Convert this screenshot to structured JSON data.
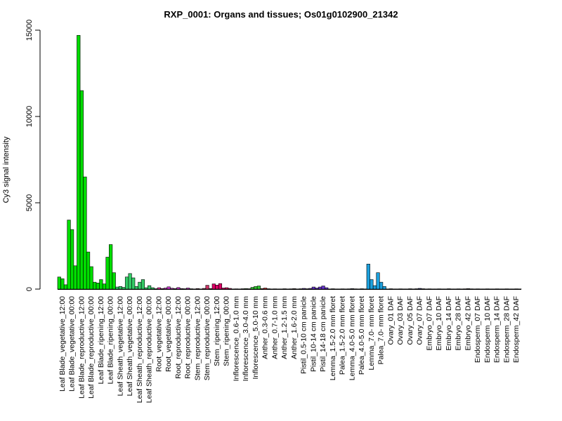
{
  "chart_data": {
    "type": "bar",
    "title": "RXP_0001: Organs and tissues; Os01g0102900_21342",
    "ylabel": "Cy3 signal intensity",
    "xlabel": "",
    "ylim": [
      0,
      15000
    ],
    "yticks": [
      0,
      5000,
      10000,
      15000
    ],
    "grid": false,
    "groups": [
      {
        "label": "Leaf Blade_vegetative_12:00",
        "color": "#00dd00",
        "values": [
          700,
          600,
          250
        ]
      },
      {
        "label": "Leaf Blade_vegetative_00:00",
        "color": "#00dd00",
        "values": [
          4000,
          3450,
          1350
        ]
      },
      {
        "label": "Leaf Blade_reproductive_12:00",
        "color": "#00dd00",
        "values": [
          14700,
          11500,
          6500
        ]
      },
      {
        "label": "Leaf Blade_reproductive_00:00",
        "color": "#00dd00",
        "values": [
          2150,
          1300,
          400
        ]
      },
      {
        "label": "Leaf Blade_ripening_12:00",
        "color": "#00dd00",
        "values": [
          350,
          550,
          300
        ]
      },
      {
        "label": "Leaf Blade_ripening_00:00",
        "color": "#00dd00",
        "values": [
          1850,
          2580,
          950
        ]
      },
      {
        "label": "Leaf Sheath_vegetative_12:00",
        "color": "#33cc66",
        "values": [
          120,
          150,
          100
        ]
      },
      {
        "label": "Leaf Sheath_vegetative_00:00",
        "color": "#33cc66",
        "values": [
          700,
          900,
          650
        ]
      },
      {
        "label": "Leaf Sheath_reproductive_12:00",
        "color": "#33cc66",
        "values": [
          150,
          400,
          550
        ]
      },
      {
        "label": "Leaf Sheath_reproductive_00:00",
        "color": "#33cc66",
        "values": [
          80,
          200,
          80
        ]
      },
      {
        "label": "Root_vegetative_12:00",
        "color": "#ff33aa",
        "values": [
          20,
          80,
          30
        ]
      },
      {
        "label": "Root_vegetative_00:00",
        "color": "#cc33cc",
        "values": [
          60,
          130,
          50
        ]
      },
      {
        "label": "Root_reproductive_12:00",
        "color": "#cc33cc",
        "values": [
          30,
          90,
          30
        ]
      },
      {
        "label": "Root_reproductive_00:00",
        "color": "#cc33cc",
        "values": [
          20,
          60,
          20
        ]
      },
      {
        "label": "Stem_reproductive_12:00",
        "color": "#cc3366",
        "values": [
          10,
          30,
          10
        ]
      },
      {
        "label": "Stem_reproductive_00:00",
        "color": "#cc3366",
        "values": [
          40,
          220,
          30
        ]
      },
      {
        "label": "Stem_ripening_12:00",
        "color": "#dd0066",
        "values": [
          300,
          230,
          320
        ]
      },
      {
        "label": "Stem_ripening_00:00",
        "color": "#dd0066",
        "values": [
          60,
          80,
          40
        ]
      },
      {
        "label": "Inflorescence_0.6-1.0 mm",
        "color": "#33cc33",
        "values": [
          10,
          15,
          10
        ]
      },
      {
        "label": "Inflorescence_3.0-4.0 mm",
        "color": "#33cc33",
        "values": [
          20,
          30,
          20
        ]
      },
      {
        "label": "Inflorescence_5.0-10 mm",
        "color": "#33cc33",
        "values": [
          100,
          150,
          180
        ]
      },
      {
        "label": "Anther_0.3-0.6 mm",
        "color": "#dd3333",
        "values": [
          30,
          60,
          20
        ]
      },
      {
        "label": "Anther_0.7-1.0 mm",
        "color": "#aa3333",
        "values": [
          10,
          15,
          10
        ]
      },
      {
        "label": "Anther_1.2-1.5 mm",
        "color": "#aa3333",
        "values": [
          10,
          20,
          10
        ]
      },
      {
        "label": "Anther_1.6-2.0 mm",
        "color": "#aa3333",
        "values": [
          15,
          25,
          10
        ]
      },
      {
        "label": "Pistil_0.5-10 cm panicle",
        "color": "#6633cc",
        "values": [
          20,
          40,
          20
        ]
      },
      {
        "label": "Pistil_10-14 cm panicle",
        "color": "#6633cc",
        "values": [
          40,
          120,
          60
        ]
      },
      {
        "label": "Pistil_14-18 cm panicle",
        "color": "#6633cc",
        "values": [
          120,
          180,
          80
        ]
      },
      {
        "label": "Lemma_1.5-2.0 mm floret",
        "color": "#3366cc",
        "values": [
          10,
          20,
          10
        ]
      },
      {
        "label": "Palea_1.5-2.0 mm floret",
        "color": "#3366cc",
        "values": [
          10,
          15,
          10
        ]
      },
      {
        "label": "Lemma_4.0-5.0 mm floret",
        "color": "#3366cc",
        "values": [
          15,
          25,
          15
        ]
      },
      {
        "label": "Palea_4.0-5.0 mm floret",
        "color": "#3366cc",
        "values": [
          10,
          20,
          10
        ]
      },
      {
        "label": "Lemma_7.0- mm floret",
        "color": "#1ca0dd",
        "values": [
          1450,
          550,
          200
        ]
      },
      {
        "label": "Palea_7.0- mm floret",
        "color": "#1ca0dd",
        "values": [
          950,
          400,
          150
        ]
      },
      {
        "label": "Ovary_01 DAF",
        "color": "#5566cc",
        "values": [
          10,
          20,
          10
        ]
      },
      {
        "label": "Ovary_03 DAF",
        "color": "#5566cc",
        "values": [
          10,
          15,
          10
        ]
      },
      {
        "label": "Ovary_05 DAF",
        "color": "#5566cc",
        "values": [
          10,
          20,
          10
        ]
      },
      {
        "label": "Ovary_07 DAF",
        "color": "#333399",
        "values": [
          20,
          40,
          20
        ]
      },
      {
        "label": "Embryo_07 DAF",
        "color": "#884466",
        "values": [
          10,
          15,
          10
        ]
      },
      {
        "label": "Embryo_10 DAF",
        "color": "#884466",
        "values": [
          10,
          15,
          10
        ]
      },
      {
        "label": "Embryo_14 DAF",
        "color": "#884466",
        "values": [
          10,
          20,
          10
        ]
      },
      {
        "label": "Embryo_28 DAF",
        "color": "#884466",
        "values": [
          10,
          15,
          10
        ]
      },
      {
        "label": "Embryo_42 DAF",
        "color": "#884466",
        "values": [
          15,
          25,
          15
        ]
      },
      {
        "label": "Endosperm_07 DAF",
        "color": "#884466",
        "values": [
          10,
          15,
          10
        ]
      },
      {
        "label": "Endosperm_10 DAF",
        "color": "#884466",
        "values": [
          10,
          15,
          10
        ]
      },
      {
        "label": "Endosperm_14 DAF",
        "color": "#884466",
        "values": [
          10,
          15,
          10
        ]
      },
      {
        "label": "Endosperm_28 DAF",
        "color": "#884466",
        "values": [
          10,
          15,
          10
        ]
      },
      {
        "label": "Endosperm_42 DAF",
        "color": "#884466",
        "values": [
          10,
          15,
          10
        ]
      }
    ]
  }
}
